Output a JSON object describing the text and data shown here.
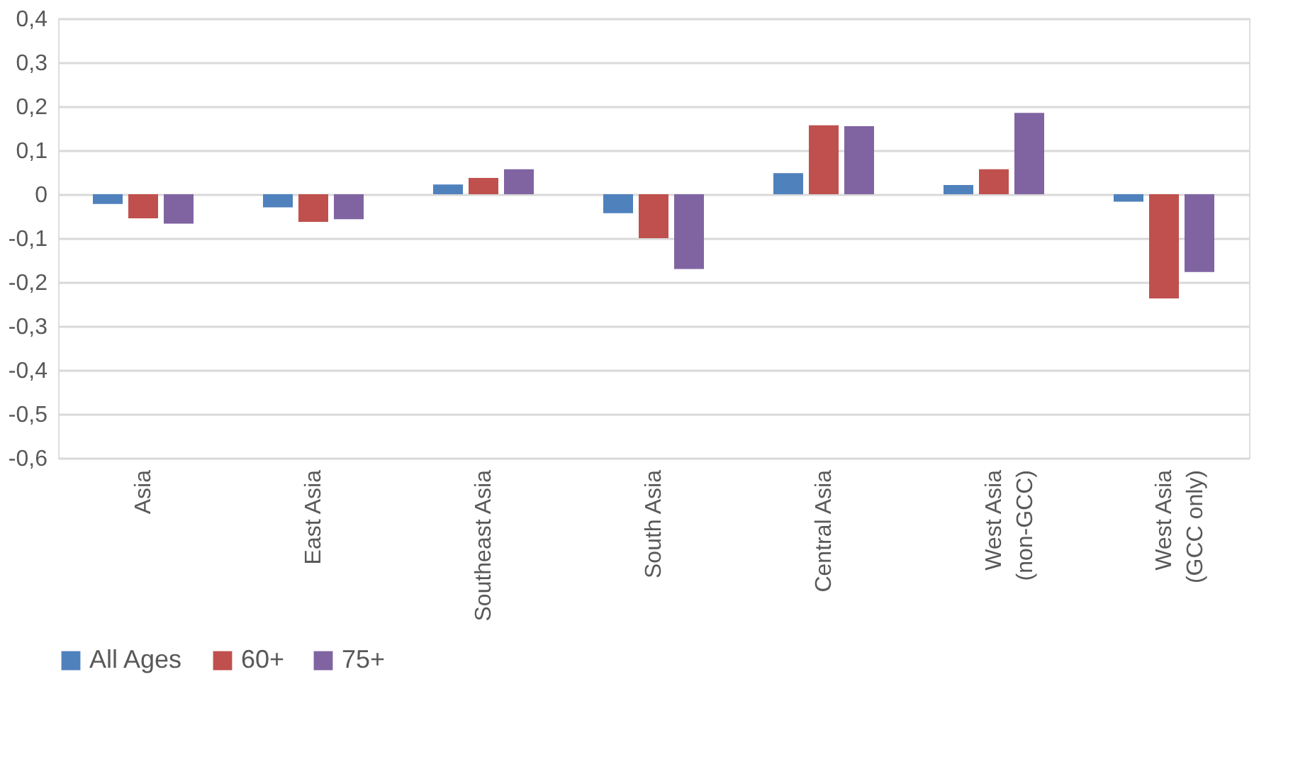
{
  "chart_data": {
    "type": "bar",
    "categories": [
      "Asia",
      "East Asia",
      "Southeast Asia",
      "South Asia",
      "Central Asia",
      "West Asia (non-GCC)",
      "West Asia (GCC only)"
    ],
    "series": [
      {
        "name": "All Ages",
        "color": "#4f81bd",
        "values": [
          -0.022,
          -0.03,
          0.022,
          -0.043,
          0.048,
          0.021,
          -0.017
        ]
      },
      {
        "name": "60+",
        "color": "#c0504d",
        "values": [
          -0.055,
          -0.063,
          0.037,
          -0.1,
          0.157,
          0.057,
          -0.237
        ]
      },
      {
        "name": "75+",
        "color": "#8064a2",
        "values": [
          -0.067,
          -0.057,
          0.057,
          -0.17,
          0.155,
          0.185,
          -0.177
        ]
      }
    ],
    "ylim": [
      -0.6,
      0.4
    ],
    "yticks": [
      {
        "value": -0.6,
        "label": "-0,6"
      },
      {
        "value": -0.5,
        "label": "-0,5"
      },
      {
        "value": -0.4,
        "label": "-0,4"
      },
      {
        "value": -0.3,
        "label": "-0,3"
      },
      {
        "value": -0.2,
        "label": "-0,2"
      },
      {
        "value": -0.1,
        "label": "-0,1"
      },
      0,
      {
        "value": 0.1,
        "label": "0,1"
      },
      {
        "value": 0.2,
        "label": "0,2"
      },
      {
        "value": 0.3,
        "label": "0,3"
      },
      {
        "value": 0.4,
        "label": "0,4"
      }
    ],
    "grid": "y",
    "legend": "bottom"
  }
}
